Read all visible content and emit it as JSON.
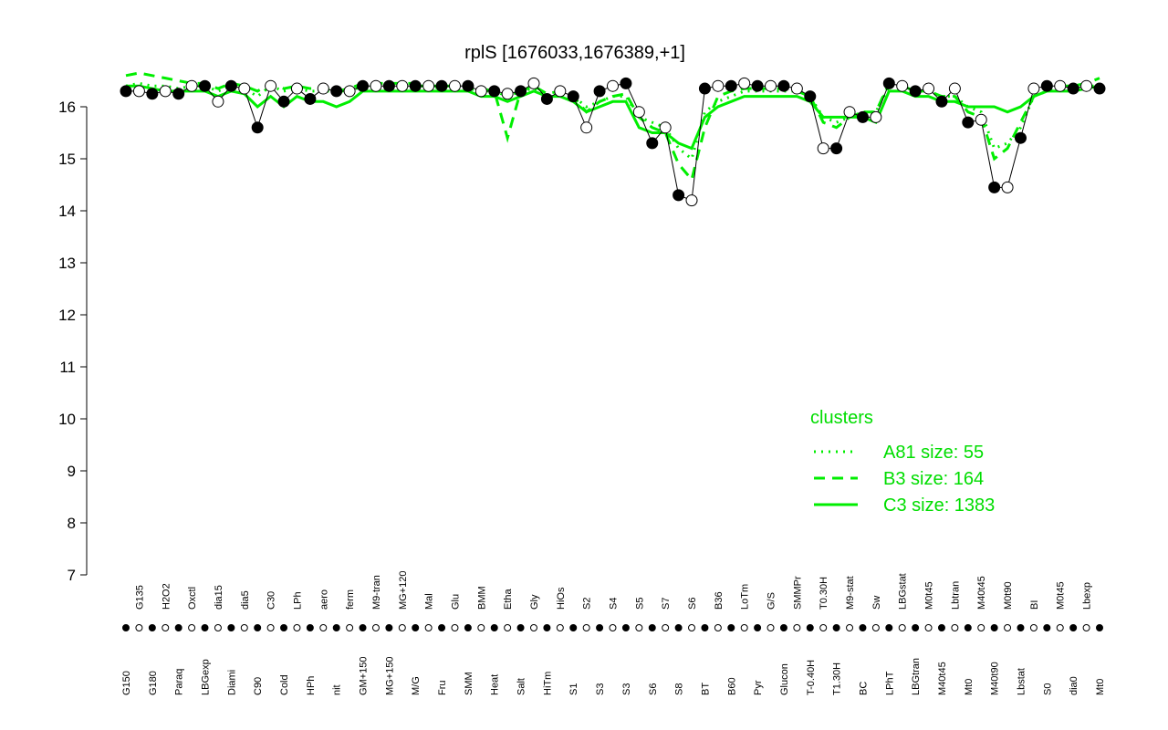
{
  "chart_data": {
    "type": "line",
    "title": "rplS [1676033,1676389,+1]",
    "categories": [
      "G150",
      "G135",
      "G180",
      "H2O2",
      "Paraq",
      "Oxctl",
      "LBGexp",
      "dia15",
      "Diami",
      "dia5",
      "C90",
      "C30",
      "Cold",
      "LPh",
      "HPh",
      "aero",
      "nit",
      "ferm",
      "GM+150",
      "M9-tran",
      "MG+150",
      "MG+120",
      "M/G",
      "Mal",
      "Fru",
      "Glu",
      "SMM",
      "BMM",
      "Heat",
      "Etha",
      "Salt",
      "Gly",
      "HiTm",
      "HiOs",
      "S1",
      "S2",
      "S3",
      "S4",
      "S3",
      "S5",
      "S6",
      "S7",
      "S8",
      "S6",
      "BT",
      "B36",
      "B60",
      "LoTm",
      "Pyr",
      "G/S",
      "Glucon",
      "SMMPr",
      "T-0.40H",
      "T0.30H",
      "T1.30H",
      "M9-stat",
      "BC",
      "Sw",
      "LPhT",
      "LBGstat",
      "LBGtran",
      "M0t45",
      "M40t45",
      "Lbtran",
      "Mt0",
      "M40t45",
      "M40t90",
      "M0t90",
      "Lbstat",
      "BI",
      "S0",
      "M0t45",
      "dia0",
      "Lbexp",
      "Mt0"
    ],
    "values": [
      16.3,
      16.3,
      16.25,
      16.3,
      16.25,
      16.4,
      16.4,
      16.1,
      16.4,
      16.35,
      15.6,
      16.4,
      16.1,
      16.35,
      16.15,
      16.35,
      16.3,
      16.3,
      16.4,
      16.4,
      16.4,
      16.4,
      16.4,
      16.4,
      16.4,
      16.4,
      16.4,
      16.3,
      16.3,
      16.25,
      16.3,
      16.45,
      16.15,
      16.3,
      16.2,
      15.6,
      16.3,
      16.4,
      16.45,
      15.9,
      15.3,
      15.6,
      14.3,
      14.2,
      16.35,
      16.4,
      16.4,
      16.45,
      16.4,
      16.4,
      16.4,
      16.35,
      16.2,
      15.2,
      15.2,
      15.9,
      15.8,
      15.8,
      16.45,
      16.4,
      16.3,
      16.35,
      16.1,
      16.35,
      15.7,
      15.75,
      14.45,
      14.45,
      15.4,
      16.35,
      16.4,
      16.4,
      16.35,
      16.4,
      16.35
    ],
    "series": [
      {
        "name": "A81 size: 55",
        "color": "#00ee00",
        "linestyle": "dotted",
        "values": [
          16.4,
          16.45,
          16.4,
          16.4,
          16.35,
          16.4,
          16.4,
          16.3,
          16.4,
          16.35,
          16.2,
          16.4,
          16.3,
          16.35,
          16.3,
          16.3,
          16.3,
          16.3,
          16.4,
          16.4,
          16.4,
          16.4,
          16.4,
          16.4,
          16.35,
          16.35,
          16.35,
          16.3,
          16.3,
          16.2,
          16.3,
          16.35,
          16.2,
          16.3,
          16.2,
          16.0,
          16.1,
          16.2,
          16.2,
          15.8,
          15.7,
          15.6,
          15.2,
          15.0,
          15.9,
          16.1,
          16.2,
          16.3,
          16.3,
          16.3,
          16.3,
          16.3,
          16.2,
          15.8,
          15.7,
          15.8,
          15.9,
          15.9,
          16.4,
          16.4,
          16.3,
          16.3,
          16.2,
          16.2,
          16.0,
          15.9,
          15.2,
          15.3,
          15.6,
          16.2,
          16.3,
          16.35,
          16.35,
          16.4,
          16.4
        ]
      },
      {
        "name": "B3 size: 164",
        "color": "#00ee00",
        "linestyle": "dashed",
        "values": [
          16.6,
          16.65,
          16.6,
          16.55,
          16.5,
          16.45,
          16.45,
          16.35,
          16.45,
          16.4,
          16.3,
          16.45,
          16.35,
          16.4,
          16.35,
          16.35,
          16.3,
          16.35,
          16.45,
          16.45,
          16.45,
          16.45,
          16.45,
          16.4,
          16.4,
          16.4,
          16.4,
          16.35,
          16.3,
          15.4,
          16.3,
          16.4,
          16.25,
          16.3,
          16.2,
          15.9,
          16.1,
          16.2,
          16.25,
          15.8,
          15.6,
          15.5,
          14.9,
          14.6,
          15.6,
          16.2,
          16.3,
          16.35,
          16.35,
          16.35,
          16.35,
          16.3,
          16.2,
          15.7,
          15.6,
          15.8,
          15.9,
          15.9,
          16.45,
          16.4,
          16.3,
          16.3,
          16.2,
          16.2,
          15.9,
          15.8,
          15.0,
          15.2,
          15.7,
          16.2,
          16.3,
          16.4,
          16.4,
          16.45,
          16.55
        ]
      },
      {
        "name": "C3 size: 1383",
        "color": "#00ee00",
        "linestyle": "solid",
        "values": [
          16.4,
          16.4,
          16.35,
          16.3,
          16.3,
          16.3,
          16.3,
          16.2,
          16.3,
          16.25,
          16.0,
          16.2,
          16.0,
          16.2,
          16.1,
          16.1,
          16.0,
          16.1,
          16.3,
          16.3,
          16.3,
          16.3,
          16.3,
          16.3,
          16.3,
          16.3,
          16.3,
          16.2,
          16.2,
          16.1,
          16.2,
          16.3,
          16.2,
          16.2,
          16.1,
          15.9,
          16.0,
          16.1,
          16.1,
          15.6,
          15.5,
          15.5,
          15.3,
          15.2,
          15.8,
          16.0,
          16.1,
          16.2,
          16.2,
          16.2,
          16.2,
          16.2,
          16.1,
          15.8,
          15.8,
          15.8,
          15.8,
          15.7,
          16.3,
          16.3,
          16.2,
          16.2,
          16.1,
          16.1,
          16.0,
          16.0,
          16.0,
          15.9,
          16.0,
          16.2,
          16.3,
          16.3,
          16.3,
          16.35,
          16.4
        ]
      }
    ],
    "legend_title": "clusters",
    "ylim": [
      6.8,
      16.8
    ],
    "yticks": [
      7,
      8,
      9,
      10,
      11,
      12,
      13,
      14,
      15,
      16
    ],
    "grid": false
  }
}
